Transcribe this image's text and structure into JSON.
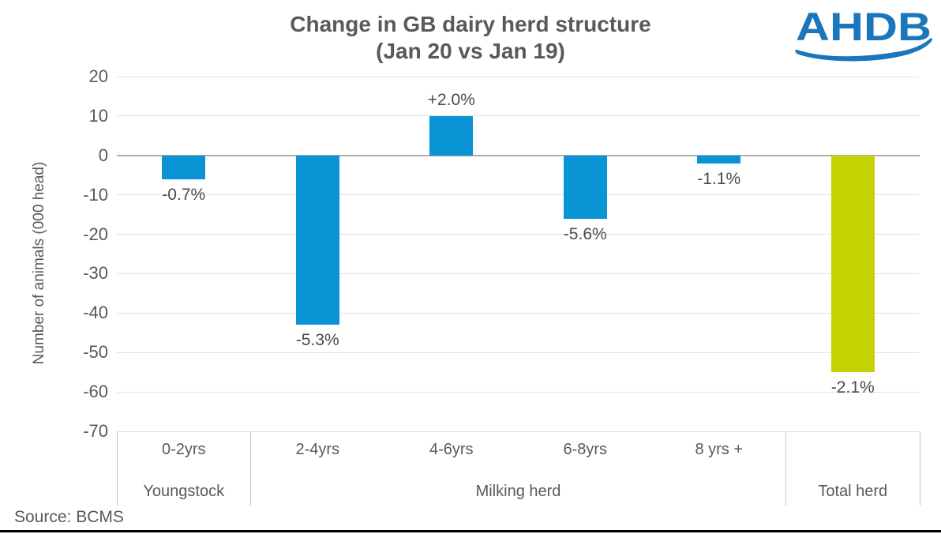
{
  "header": {
    "title_line1": "Change in GB dairy herd structure",
    "title_line2": "(Jan 20 vs Jan 19)",
    "logo_text": "AHDB"
  },
  "source": {
    "label": "Source: BCMS"
  },
  "colors": {
    "bar_blue": "#0a93d5",
    "bar_green": "#c5d303",
    "grid": "#e2e2e2",
    "zero_line": "#adadad",
    "divider": "#c6c6c6",
    "text_gray": "#595959",
    "data_label_gray": "#4a4a4a",
    "logo_blue": "#1b76bc",
    "bottom_rule": "#000000"
  },
  "chart_data": {
    "type": "bar",
    "title": "Change in GB dairy herd structure",
    "subtitle": "(Jan 20 vs Jan 19)",
    "xlabel": "",
    "ylabel": "Number of animals (000 head)",
    "ylim": [
      -70,
      20
    ],
    "yticks": [
      20,
      10,
      0,
      -10,
      -20,
      -30,
      -40,
      -50,
      -60,
      -70
    ],
    "grid": "horizontal-major",
    "legend": "none",
    "age_labels": [
      "0-2yrs",
      "2-4yrs",
      "4-6yrs",
      "6-8yrs",
      "8 yrs +",
      ""
    ],
    "categories": [
      "0-2yrs",
      "2-4yrs",
      "4-6yrs",
      "6-8yrs",
      "8 yrs +",
      "Total herd"
    ],
    "values": [
      -6,
      -43,
      10,
      -16,
      -2,
      -55
    ],
    "data_labels": [
      "-0.7%",
      "-5.3%",
      "+2.0%",
      "-5.6%",
      "-1.1%",
      "-2.1%"
    ],
    "bar_colors": [
      "blue",
      "blue",
      "blue",
      "blue",
      "blue",
      "green"
    ],
    "groups": [
      {
        "label": "Youngstock",
        "start": 0,
        "end": 0
      },
      {
        "label": "Milking herd",
        "start": 1,
        "end": 4
      },
      {
        "label": "Total herd",
        "start": 5,
        "end": 5
      }
    ],
    "source": "Source: BCMS"
  }
}
